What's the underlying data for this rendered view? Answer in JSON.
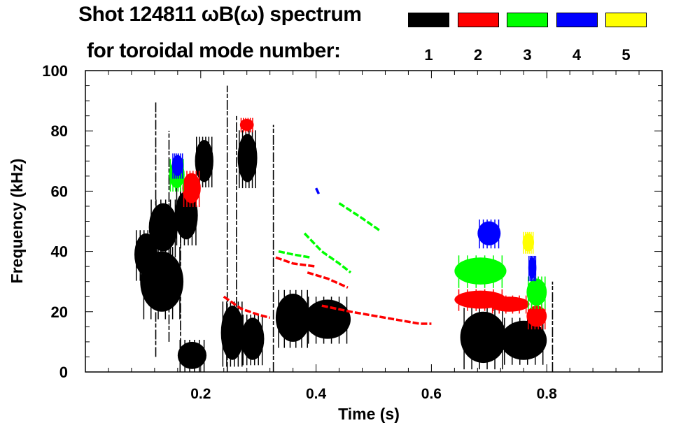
{
  "chart_data": {
    "type": "heatmap",
    "title": "Shot 124811 ωB(ω) spectrum",
    "subtitle": "for toroidal mode number:",
    "xlabel": "Time (s)",
    "ylabel": "Frequency (kHz)",
    "xlim": [
      0.0,
      1.0
    ],
    "ylim": [
      0,
      100
    ],
    "xticks": [
      "0.2",
      "0.4",
      "0.6",
      "0.8"
    ],
    "xtick_values": [
      0.2,
      0.4,
      0.6,
      0.8
    ],
    "yticks": [
      "0",
      "20",
      "40",
      "60",
      "80",
      "100"
    ],
    "ytick_values": [
      0,
      20,
      40,
      60,
      80,
      100
    ],
    "legend": [
      {
        "mode": "1",
        "color": "#000000"
      },
      {
        "mode": "2",
        "color": "#ff0000"
      },
      {
        "mode": "3",
        "color": "#00ff00"
      },
      {
        "mode": "4",
        "color": "#0000ff"
      },
      {
        "mode": "5",
        "color": "#ffff00"
      }
    ],
    "blobs": [
      {
        "mode": 1,
        "t": [
          0.085,
          0.125
        ],
        "f": [
          32,
          46
        ]
      },
      {
        "mode": 1,
        "t": [
          0.11,
          0.16
        ],
        "f": [
          40,
          56
        ]
      },
      {
        "mode": 1,
        "t": [
          0.155,
          0.195
        ],
        "f": [
          44,
          60
        ]
      },
      {
        "mode": 1,
        "t": [
          0.19,
          0.222
        ],
        "f": [
          63,
          77
        ]
      },
      {
        "mode": 1,
        "t": [
          0.16,
          0.21
        ],
        "f": [
          1,
          10
        ]
      },
      {
        "mode": 1,
        "t": [
          0.235,
          0.275
        ],
        "f": [
          4,
          22
        ]
      },
      {
        "mode": 1,
        "t": [
          0.27,
          0.31
        ],
        "f": [
          4,
          18
        ]
      },
      {
        "mode": 1,
        "t": [
          0.264,
          0.298
        ],
        "f": [
          63,
          79
        ]
      },
      {
        "mode": 1,
        "t": [
          0.33,
          0.39
        ],
        "f": [
          10,
          26
        ]
      },
      {
        "mode": 1,
        "t": [
          0.38,
          0.46
        ],
        "f": [
          11,
          24
        ]
      },
      {
        "mode": 1,
        "t": [
          0.65,
          0.73
        ],
        "f": [
          3,
          20
        ]
      },
      {
        "mode": 1,
        "t": [
          0.72,
          0.8
        ],
        "f": [
          4,
          17
        ]
      },
      {
        "mode": 1,
        "t": [
          0.095,
          0.17
        ],
        "f": [
          20,
          40
        ]
      },
      {
        "mode": 2,
        "t": [
          0.168,
          0.2
        ],
        "f": [
          56,
          66
        ]
      },
      {
        "mode": 2,
        "t": [
          0.268,
          0.292
        ],
        "f": [
          80,
          84
        ]
      },
      {
        "mode": 2,
        "t": [
          0.64,
          0.73
        ],
        "f": [
          21,
          27
        ]
      },
      {
        "mode": 2,
        "t": [
          0.7,
          0.77
        ],
        "f": [
          20,
          25
        ]
      },
      {
        "mode": 2,
        "t": [
          0.765,
          0.8
        ],
        "f": [
          15,
          22
        ]
      },
      {
        "mode": 3,
        "t": [
          0.145,
          0.172
        ],
        "f": [
          61,
          70
        ]
      },
      {
        "mode": 3,
        "t": [
          0.64,
          0.73
        ],
        "f": [
          29,
          38
        ]
      },
      {
        "mode": 3,
        "t": [
          0.765,
          0.8
        ],
        "f": [
          22,
          31
        ]
      },
      {
        "mode": 4,
        "t": [
          0.15,
          0.17
        ],
        "f": [
          65,
          72
        ]
      },
      {
        "mode": 4,
        "t": [
          0.68,
          0.72
        ],
        "f": [
          42,
          50
        ]
      },
      {
        "mode": 4,
        "t": [
          0.768,
          0.782
        ],
        "f": [
          31,
          38
        ]
      },
      {
        "mode": 5,
        "t": [
          0.758,
          0.778
        ],
        "f": [
          40,
          46
        ]
      }
    ],
    "ridges": [
      {
        "mode": 2,
        "t": [
          0.24,
          0.27,
          0.3,
          0.32
        ],
        "f": [
          25,
          21,
          19,
          18
        ]
      },
      {
        "mode": 2,
        "t": [
          0.33,
          0.36,
          0.4
        ],
        "f": [
          38,
          36,
          35
        ]
      },
      {
        "mode": 2,
        "t": [
          0.385,
          0.42,
          0.455
        ],
        "f": [
          33,
          31,
          28
        ]
      },
      {
        "mode": 2,
        "t": [
          0.41,
          0.46,
          0.52,
          0.58,
          0.6
        ],
        "f": [
          22,
          20,
          18,
          16,
          16
        ]
      },
      {
        "mode": 3,
        "t": [
          0.335,
          0.36,
          0.39
        ],
        "f": [
          40,
          39,
          38
        ]
      },
      {
        "mode": 3,
        "t": [
          0.38,
          0.41,
          0.44,
          0.46
        ],
        "f": [
          46,
          40,
          36,
          33
        ]
      },
      {
        "mode": 3,
        "t": [
          0.44,
          0.48,
          0.51
        ],
        "f": [
          56,
          51,
          47
        ]
      },
      {
        "mode": 4,
        "t": [
          0.4,
          0.405
        ],
        "f": [
          61,
          59
        ]
      }
    ],
    "vlines": [
      {
        "mode": 1,
        "t": 0.122,
        "f": [
          5,
          90
        ]
      },
      {
        "mode": 1,
        "t": 0.145,
        "f": [
          10,
          80
        ]
      },
      {
        "mode": 1,
        "t": 0.165,
        "f": [
          8,
          60
        ]
      },
      {
        "mode": 1,
        "t": 0.246,
        "f": [
          0,
          95
        ]
      },
      {
        "mode": 1,
        "t": 0.262,
        "f": [
          10,
          85
        ]
      },
      {
        "mode": 1,
        "t": 0.326,
        "f": [
          0,
          82
        ]
      },
      {
        "mode": 1,
        "t": 0.81,
        "f": [
          0,
          30
        ]
      }
    ]
  }
}
